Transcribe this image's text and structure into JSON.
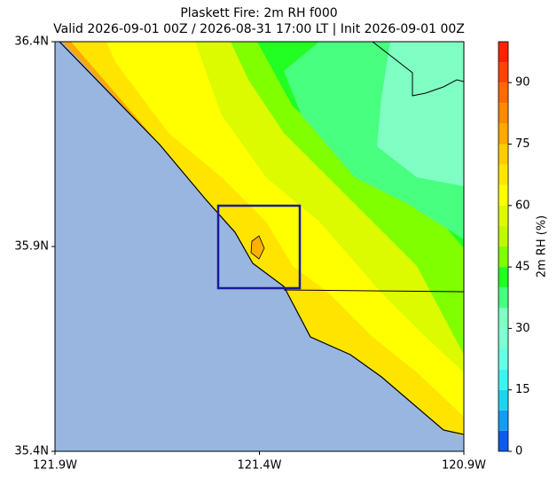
{
  "title": "Plaskett Fire: 2m RH f000",
  "subtitle": "Valid 2026-09-01 00Z / 2026-08-31 17:00 LT | Init 2026-09-01 00Z",
  "map": {
    "latlim": [
      35.4,
      36.4
    ],
    "lonlim": [
      -121.9,
      -120.9
    ],
    "latticks": [
      {
        "value": 36.4,
        "label": "36.4N"
      },
      {
        "value": 35.9,
        "label": "35.9N"
      },
      {
        "value": 35.4,
        "label": "35.4N"
      }
    ],
    "lonticks": [
      {
        "value": -121.9,
        "label": "121.9W"
      },
      {
        "value": -121.4,
        "label": "121.4W"
      },
      {
        "value": -120.9,
        "label": "120.9W"
      }
    ]
  },
  "colorbar": {
    "label": "2m RH (%)",
    "lim": [
      0,
      100
    ],
    "levels": [
      0,
      5,
      10,
      15,
      20,
      25,
      30,
      35,
      40,
      45,
      50,
      55,
      60,
      65,
      70,
      75,
      80,
      85,
      90,
      95,
      100
    ],
    "colors": [
      "#0b5ce8",
      "#139cf0",
      "#20d2f2",
      "#3ef2f2",
      "#66fee6",
      "#7effd2",
      "#80ffc4",
      "#48ff80",
      "#22ff22",
      "#80ff00",
      "#bff800",
      "#dcfa00",
      "#ffff00",
      "#ffe600",
      "#ffcc00",
      "#ffa800",
      "#ff8a00",
      "#ff6a00",
      "#ff4400",
      "#ff2200"
    ],
    "ticks": [
      0,
      15,
      30,
      45,
      60,
      75,
      90
    ]
  }
}
